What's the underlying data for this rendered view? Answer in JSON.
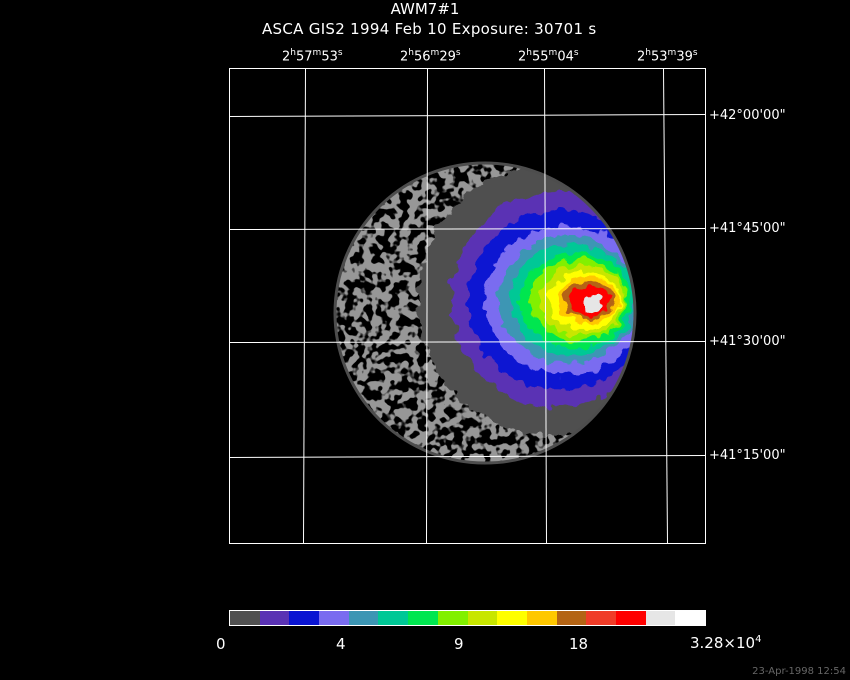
{
  "title": "AWM7#1",
  "subtitle": "ASCA GIS2   1994 Feb 10    Exposure: 30701 s",
  "ra_labels": [
    {
      "h": "2",
      "m": "57",
      "s": "53"
    },
    {
      "h": "2",
      "m": "56",
      "s": "29"
    },
    {
      "h": "2",
      "m": "55",
      "s": "04"
    },
    {
      "h": "2",
      "m": "53",
      "s": "39"
    }
  ],
  "dec_labels": [
    "+42°00'00\"",
    "+41°45'00\"",
    "+41°30'00\"",
    "+41°15'00\""
  ],
  "colorbar": {
    "colors": [
      "#505050",
      "#5a32b4",
      "#0a14d2",
      "#7a6cf0",
      "#3c96b4",
      "#00c896",
      "#00e650",
      "#82f000",
      "#c8e600",
      "#ffff00",
      "#ffc800",
      "#b46414",
      "#f03c28",
      "#ff0000",
      "#e6e6e6",
      "#ffffff"
    ],
    "ticks": [
      {
        "text": "0"
      },
      {
        "text": "4"
      },
      {
        "text": "9"
      },
      {
        "text": "18"
      },
      {
        "text_base": "3.28×10",
        "text_exp": "4"
      }
    ]
  },
  "timestamp": "23-Apr-1998 12:54"
}
